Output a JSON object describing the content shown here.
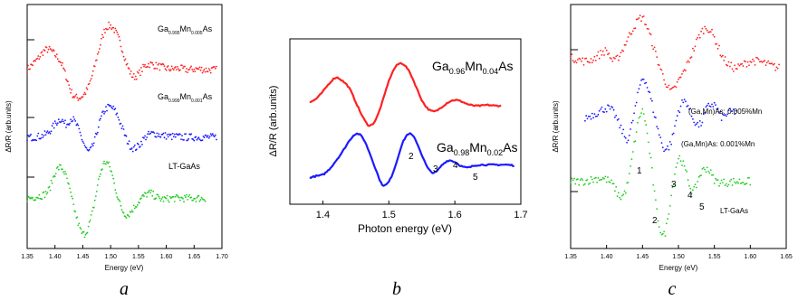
{
  "colors": {
    "red": "#ff2020",
    "blue": "#1a1aff",
    "green": "#22cc22",
    "axis": "#000000"
  },
  "panels": [
    {
      "letter": "a",
      "xlabel": "Energy (eV)",
      "ylabel": "ΔR/R (arb.units)",
      "xlim": [
        1.35,
        1.7
      ],
      "xticks": [
        "1.35",
        "1.40",
        "1.45",
        "1.50",
        "1.55",
        "1.60",
        "1.65",
        "1.70"
      ],
      "annotations": [
        {
          "base": "Ga",
          "sub1": "0.995",
          "mid": "Mn",
          "sub2": "0.005",
          "tail": "As"
        },
        {
          "base": "Ga",
          "sub1": "0.999",
          "mid": "Mn",
          "sub2": "0.001",
          "tail": "As"
        },
        {
          "base": "LT-GaAs"
        }
      ]
    },
    {
      "letter": "b",
      "xlabel": "Photon energy (eV)",
      "ylabel": "ΔR/R (arb.units)",
      "xlim": [
        1.35,
        1.7
      ],
      "xticks": [
        "1.4",
        "1.5",
        "1.6",
        "1.7"
      ],
      "annotations": [
        {
          "base": "Ga",
          "sub1": "0.96",
          "mid": "Mn",
          "sub2": "0.04",
          "tail": "As"
        },
        {
          "base": "Ga",
          "sub1": "0.98",
          "mid": "Mn",
          "sub2": "0.02",
          "tail": "As"
        }
      ],
      "peak_labels": [
        "2",
        "3",
        "4",
        "5"
      ]
    },
    {
      "letter": "c",
      "xlabel": "Energy (eV)",
      "ylabel": "ΔR/R (arb.units)",
      "xlim": [
        1.35,
        1.65
      ],
      "xticks": [
        "1.35",
        "1.40",
        "1.45",
        "1.50",
        "1.55",
        "1.60",
        "1.65"
      ],
      "annotations": [
        {
          "base": "(Ga,Mn)As: 0.005%Mn"
        },
        {
          "base": "(Ga,Mn)As: 0.001%Mn"
        },
        {
          "base": "LT-GaAs"
        }
      ],
      "peak_labels": [
        "1",
        "2",
        "3",
        "4",
        "5"
      ]
    }
  ],
  "chart_data": [
    {
      "type": "scatter",
      "title": "",
      "xlabel": "Energy (eV)",
      "ylabel": "ΔR/R (arb.units)",
      "xlim": [
        1.35,
        1.7
      ],
      "series": [
        {
          "name": "Ga0.995Mn0.005As",
          "color": "#ff2020",
          "x": [
            1.35,
            1.36,
            1.37,
            1.38,
            1.39,
            1.4,
            1.41,
            1.42,
            1.43,
            1.44,
            1.45,
            1.46,
            1.47,
            1.48,
            1.49,
            1.5,
            1.51,
            1.52,
            1.53,
            1.54,
            1.55,
            1.56,
            1.57,
            1.58,
            1.59,
            1.6,
            1.61,
            1.62,
            1.63,
            1.64,
            1.65,
            1.66,
            1.67,
            1.68,
            1.69
          ],
          "y": [
            0.95,
            1.02,
            1.1,
            1.2,
            1.22,
            1.15,
            1.05,
            0.85,
            0.62,
            0.55,
            0.58,
            0.7,
            0.95,
            1.25,
            1.5,
            1.55,
            1.45,
            1.25,
            1.0,
            0.85,
            0.88,
            0.98,
            1.02,
            1.0,
            0.98,
            0.96,
            0.95,
            0.96,
            0.95,
            0.94,
            0.95,
            0.95,
            0.94,
            0.94,
            0.94
          ]
        },
        {
          "name": "Ga0.999Mn0.001As",
          "color": "#1a1aff",
          "x": [
            1.35,
            1.36,
            1.37,
            1.38,
            1.39,
            1.4,
            1.41,
            1.42,
            1.43,
            1.44,
            1.45,
            1.46,
            1.47,
            1.48,
            1.49,
            1.5,
            1.51,
            1.52,
            1.53,
            1.54,
            1.55,
            1.56,
            1.57,
            1.58,
            1.59,
            1.6,
            1.61,
            1.62,
            1.63,
            1.64,
            1.65,
            1.66,
            1.67,
            1.68,
            1.69
          ],
          "y": [
            0.0,
            0.0,
            0.01,
            0.03,
            0.08,
            0.18,
            0.25,
            0.18,
            0.26,
            0.15,
            -0.05,
            -0.2,
            -0.08,
            0.2,
            0.38,
            0.42,
            0.34,
            0.15,
            -0.05,
            -0.15,
            -0.12,
            -0.02,
            0.04,
            0.05,
            0.03,
            0.02,
            0.01,
            0.01,
            0.0,
            0.0,
            0.0,
            0.0,
            0.0,
            0.0,
            0.0
          ]
        },
        {
          "name": "LT-GaAs",
          "color": "#22cc22",
          "x": [
            1.35,
            1.36,
            1.37,
            1.38,
            1.39,
            1.4,
            1.41,
            1.42,
            1.43,
            1.44,
            1.45,
            1.46,
            1.47,
            1.48,
            1.49,
            1.5,
            1.51,
            1.52,
            1.53,
            1.54,
            1.55,
            1.56,
            1.57,
            1.58,
            1.59,
            1.6,
            1.61,
            1.62,
            1.63,
            1.64,
            1.65,
            1.66,
            1.67
          ],
          "y": [
            -0.85,
            -0.84,
            -0.82,
            -0.8,
            -0.72,
            -0.5,
            -0.42,
            -0.55,
            -0.85,
            -1.15,
            -1.35,
            -1.25,
            -0.95,
            -0.55,
            -0.35,
            -0.45,
            -0.75,
            -1.0,
            -1.08,
            -1.0,
            -0.9,
            -0.82,
            -0.78,
            -0.82,
            -0.86,
            -0.86,
            -0.85,
            -0.85,
            -0.85,
            -0.85,
            -0.85,
            -0.85,
            -0.85
          ]
        }
      ]
    },
    {
      "type": "line",
      "title": "",
      "xlabel": "Photon energy (eV)",
      "ylabel": "ΔR/R (arb.units)",
      "xlim": [
        1.35,
        1.7
      ],
      "series": [
        {
          "name": "Ga0.96Mn0.04As",
          "color": "#ff2020",
          "x": [
            1.38,
            1.39,
            1.4,
            1.41,
            1.42,
            1.43,
            1.44,
            1.45,
            1.46,
            1.47,
            1.48,
            1.49,
            1.5,
            1.51,
            1.52,
            1.53,
            1.54,
            1.55,
            1.56,
            1.57,
            1.58,
            1.59,
            1.6,
            1.61,
            1.62,
            1.63,
            1.64,
            1.65,
            1.66,
            1.67
          ],
          "y": [
            0.55,
            0.6,
            0.7,
            0.82,
            0.9,
            0.85,
            0.75,
            0.55,
            0.35,
            0.22,
            0.3,
            0.55,
            0.85,
            1.05,
            1.1,
            1.0,
            0.8,
            0.58,
            0.45,
            0.42,
            0.48,
            0.55,
            0.58,
            0.56,
            0.52,
            0.5,
            0.5,
            0.51,
            0.5,
            0.5
          ]
        },
        {
          "name": "Ga0.98Mn0.02As",
          "color": "#1a1aff",
          "x": [
            1.38,
            1.39,
            1.4,
            1.41,
            1.42,
            1.43,
            1.44,
            1.45,
            1.46,
            1.47,
            1.48,
            1.49,
            1.5,
            1.51,
            1.52,
            1.53,
            1.54,
            1.55,
            1.56,
            1.57,
            1.58,
            1.59,
            1.6,
            1.61,
            1.62,
            1.63,
            1.64,
            1.65,
            1.66,
            1.67,
            1.68,
            1.69
          ],
          "y": [
            -0.52,
            -0.5,
            -0.48,
            -0.4,
            -0.28,
            -0.15,
            0.0,
            0.1,
            0.05,
            -0.15,
            -0.4,
            -0.62,
            -0.58,
            -0.35,
            -0.05,
            0.1,
            0.02,
            -0.2,
            -0.4,
            -0.45,
            -0.35,
            -0.28,
            -0.3,
            -0.36,
            -0.38,
            -0.35,
            -0.34,
            -0.34,
            -0.34,
            -0.34,
            -0.34,
            -0.35
          ]
        }
      ]
    },
    {
      "type": "scatter",
      "title": "",
      "xlabel": "Energy (eV)",
      "ylabel": "ΔR/R (arb.units)",
      "xlim": [
        1.35,
        1.65
      ],
      "series": [
        {
          "name": "(Ga,Mn)As: 0.005%Mn",
          "color": "#ff2020",
          "x": [
            1.35,
            1.36,
            1.37,
            1.38,
            1.39,
            1.4,
            1.41,
            1.42,
            1.43,
            1.44,
            1.45,
            1.46,
            1.47,
            1.48,
            1.49,
            1.5,
            1.51,
            1.52,
            1.53,
            1.54,
            1.55,
            1.56,
            1.57,
            1.58,
            1.59,
            1.6,
            1.61,
            1.62,
            1.63,
            1.64
          ],
          "y": [
            1.1,
            1.08,
            1.05,
            1.08,
            1.15,
            1.2,
            1.05,
            1.18,
            1.4,
            1.6,
            1.7,
            1.45,
            1.1,
            0.8,
            0.6,
            0.75,
            0.95,
            1.2,
            1.45,
            1.55,
            1.4,
            1.15,
            1.0,
            0.95,
            1.0,
            1.05,
            1.05,
            1.02,
            0.98,
            0.95
          ]
        },
        {
          "name": "(Ga,Mn)As: 0.001%Mn",
          "color": "#1a1aff",
          "x": [
            1.37,
            1.38,
            1.39,
            1.4,
            1.41,
            1.42,
            1.43,
            1.44,
            1.45,
            1.46,
            1.47,
            1.48,
            1.49,
            1.5,
            1.51,
            1.52,
            1.53,
            1.54,
            1.55,
            1.56,
            1.57,
            1.58
          ],
          "y": [
            0.2,
            0.25,
            0.3,
            0.35,
            0.28,
            0.05,
            -0.1,
            0.35,
            0.8,
            0.55,
            0.1,
            -0.25,
            -0.15,
            0.3,
            0.45,
            0.2,
            0.1,
            0.35,
            0.4,
            0.22,
            0.28,
            0.3
          ]
        },
        {
          "name": "LT-GaAs",
          "color": "#22cc22",
          "x": [
            1.35,
            1.36,
            1.37,
            1.38,
            1.39,
            1.4,
            1.41,
            1.42,
            1.43,
            1.44,
            1.45,
            1.46,
            1.47,
            1.48,
            1.49,
            1.5,
            1.51,
            1.52,
            1.53,
            1.54,
            1.55,
            1.56,
            1.57,
            1.58,
            1.59,
            1.6
          ],
          "y": [
            -0.75,
            -0.75,
            -0.74,
            -0.72,
            -0.7,
            -0.72,
            -0.82,
            -0.98,
            -0.75,
            -0.1,
            0.3,
            -0.3,
            -1.2,
            -1.55,
            -0.95,
            -0.4,
            -0.6,
            -0.9,
            -0.65,
            -0.55,
            -0.72,
            -0.76,
            -0.76,
            -0.75,
            -0.75,
            -0.75
          ]
        }
      ]
    }
  ]
}
